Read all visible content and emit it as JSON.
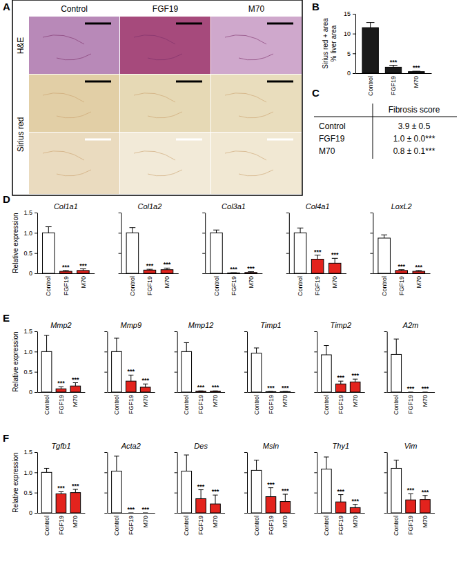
{
  "panel_labels": [
    "A",
    "B",
    "C",
    "D",
    "E",
    "F"
  ],
  "images": {
    "columns": [
      "Control",
      "FGF19",
      "M70"
    ],
    "rows": [
      "H&E",
      "Sirius red"
    ]
  },
  "table": {
    "column": "Fibrosis score",
    "rows": [
      [
        "Control",
        "3.9 ± 0.5"
      ],
      [
        "FGF19",
        "1.0 ± 0.0***"
      ],
      [
        "M70",
        "0.8 ± 0.1***"
      ]
    ]
  },
  "chart_data": [
    {
      "type": "bar",
      "ylabel": [
        "Sirius red + area",
        "% liver area"
      ],
      "categories": [
        "Control",
        "FGF19",
        "M70"
      ],
      "values": [
        11.5,
        1.5,
        0.4
      ],
      "errors": [
        1.3,
        0.5,
        0.1
      ],
      "annotations": [
        null,
        "***",
        "***"
      ],
      "colors": [
        "#1a1a1a",
        "#1a1a1a",
        "#1a1a1a"
      ],
      "ylim": [
        0,
        15
      ],
      "yticks": [
        0,
        5,
        10,
        15
      ]
    },
    {
      "type": "bar",
      "title": "Col1a1",
      "ylabel": [
        "Relative expression"
      ],
      "categories": [
        "Control",
        "FGF19",
        "M70"
      ],
      "values": [
        1.0,
        0.05,
        0.07
      ],
      "errors": [
        0.15,
        0.02,
        0.04
      ],
      "annotations": [
        null,
        "***",
        "***"
      ],
      "colors": [
        "#ffffff",
        "#e3231d",
        "#e3231d"
      ],
      "ylim": [
        0,
        1.5
      ],
      "yticks": [
        0,
        0.5,
        {
          "value": 1,
          "label": "1.0"
        },
        1.5
      ]
    },
    {
      "type": "bar",
      "title": "Col1a2",
      "tick_labels": "x",
      "categories": [
        "Control",
        "FGF19",
        "M70"
      ],
      "values": [
        1.0,
        0.08,
        0.09
      ],
      "errors": [
        0.13,
        0.02,
        0.04
      ],
      "annotations": [
        null,
        "***",
        "***"
      ],
      "colors": [
        "#ffffff",
        "#e3231d",
        "#e3231d"
      ],
      "ylim": [
        0,
        1.5
      ],
      "yticks": [
        0,
        0.5,
        {
          "value": 1,
          "label": "1.0"
        },
        1.5
      ]
    },
    {
      "type": "bar",
      "title": "Col3a1",
      "tick_labels": "x",
      "categories": [
        "Control",
        "FGF19",
        "M70"
      ],
      "values": [
        1.0,
        0.01,
        0.02
      ],
      "errors": [
        0.07,
        0.005,
        0.02
      ],
      "annotations": [
        null,
        "***",
        "***"
      ],
      "colors": [
        "#ffffff",
        "#e3231d",
        "#e3231d"
      ],
      "ylim": [
        0,
        1.5
      ],
      "yticks": [
        0,
        0.5,
        {
          "value": 1,
          "label": "1.0"
        },
        1.5
      ]
    },
    {
      "type": "bar",
      "title": "Col4a1",
      "tick_labels": "x",
      "categories": [
        "Control",
        "FGF19",
        "M70"
      ],
      "values": [
        1.0,
        0.35,
        0.25
      ],
      "errors": [
        0.12,
        0.1,
        0.12
      ],
      "annotations": [
        null,
        "***",
        "***"
      ],
      "colors": [
        "#ffffff",
        "#e3231d",
        "#e3231d"
      ],
      "ylim": [
        0,
        1.5
      ],
      "yticks": [
        0,
        0.5,
        {
          "value": 1,
          "label": "1.0"
        },
        1.5
      ]
    },
    {
      "type": "bar",
      "title": "LoxL2",
      "tick_labels": "x",
      "categories": [
        "Control",
        "FGF19",
        "M70"
      ],
      "values": [
        0.87,
        0.07,
        0.05
      ],
      "errors": [
        0.08,
        0.02,
        0.02
      ],
      "annotations": [
        null,
        "***",
        "***"
      ],
      "colors": [
        "#ffffff",
        "#e3231d",
        "#e3231d"
      ],
      "ylim": [
        0,
        1.5
      ],
      "yticks": [
        0,
        0.5,
        {
          "value": 1,
          "label": "1.0"
        },
        1.5
      ]
    },
    {
      "type": "bar",
      "title": "Mmp2",
      "ylabel": [
        "Relative expression"
      ],
      "categories": [
        "Control",
        "FGF19",
        "M70"
      ],
      "values": [
        1.0,
        0.08,
        0.15
      ],
      "errors": [
        0.4,
        0.05,
        0.08
      ],
      "annotations": [
        null,
        "***",
        "***"
      ],
      "colors": [
        "#ffffff",
        "#e3231d",
        "#e3231d"
      ],
      "ylim": [
        0,
        1.5
      ],
      "yticks": [
        0,
        0.5,
        {
          "value": 1,
          "label": "1.0"
        },
        1.5
      ]
    },
    {
      "type": "bar",
      "title": "Mmp9",
      "tick_labels": "x",
      "categories": [
        "Control",
        "FGF19",
        "M70"
      ],
      "values": [
        1.0,
        0.27,
        0.12
      ],
      "errors": [
        0.33,
        0.15,
        0.08
      ],
      "annotations": [
        null,
        "***",
        "***"
      ],
      "colors": [
        "#ffffff",
        "#e3231d",
        "#e3231d"
      ],
      "ylim": [
        0,
        1.5
      ],
      "yticks": [
        0,
        0.5,
        {
          "value": 1,
          "label": "1.0"
        },
        1.5
      ]
    },
    {
      "type": "bar",
      "title": "Mmp12",
      "tick_labels": "x",
      "categories": [
        "Control",
        "FGF19",
        "M70"
      ],
      "values": [
        1.0,
        0.02,
        0.02
      ],
      "errors": [
        0.22,
        0.01,
        0.01
      ],
      "annotations": [
        null,
        "***",
        "***"
      ],
      "colors": [
        "#ffffff",
        "#e3231d",
        "#e3231d"
      ],
      "ylim": [
        0,
        1.5
      ],
      "yticks": [
        0,
        0.5,
        {
          "value": 1,
          "label": "1.0"
        },
        1.5
      ]
    },
    {
      "type": "bar",
      "title": "Timp1",
      "tick_labels": "x",
      "categories": [
        "Control",
        "FGF19",
        "M70"
      ],
      "values": [
        0.96,
        0.01,
        0.01
      ],
      "errors": [
        0.13,
        0.005,
        0.005
      ],
      "annotations": [
        null,
        "***",
        "***"
      ],
      "colors": [
        "#ffffff",
        "#e3231d",
        "#e3231d"
      ],
      "ylim": [
        0,
        1.5
      ],
      "yticks": [
        0,
        0.5,
        {
          "value": 1,
          "label": "1.0"
        },
        1.5
      ]
    },
    {
      "type": "bar",
      "title": "Timp2",
      "tick_labels": "x",
      "categories": [
        "Control",
        "FGF19",
        "M70"
      ],
      "values": [
        0.92,
        0.2,
        0.25
      ],
      "errors": [
        0.23,
        0.07,
        0.07
      ],
      "annotations": [
        null,
        "***",
        "***"
      ],
      "colors": [
        "#ffffff",
        "#e3231d",
        "#e3231d"
      ],
      "ylim": [
        0,
        1.5
      ],
      "yticks": [
        0,
        0.5,
        {
          "value": 1,
          "label": "1.0"
        },
        1.5
      ]
    },
    {
      "type": "bar",
      "title": "A2m",
      "tick_labels": "x",
      "categories": [
        "Control",
        "FGF19",
        "M70"
      ],
      "values": [
        0.93,
        0.0,
        0.0
      ],
      "errors": [
        0.38,
        0.0,
        0.0
      ],
      "annotations": [
        null,
        "***",
        "***"
      ],
      "colors": [
        "#ffffff",
        "#e3231d",
        "#e3231d"
      ],
      "ylim": [
        0,
        1.5
      ],
      "yticks": [
        0,
        0.5,
        {
          "value": 1,
          "label": "1.0"
        },
        1.5
      ]
    },
    {
      "type": "bar",
      "title": "Tgfb1",
      "ylabel": [
        "Relative expression"
      ],
      "categories": [
        "Control",
        "FGF19",
        "M70"
      ],
      "values": [
        1.0,
        0.47,
        0.5
      ],
      "errors": [
        0.1,
        0.05,
        0.08
      ],
      "annotations": [
        null,
        "***",
        "***"
      ],
      "colors": [
        "#ffffff",
        "#e3231d",
        "#e3231d"
      ],
      "ylim": [
        0,
        1.5
      ],
      "yticks": [
        0,
        0.5,
        {
          "value": 1,
          "label": "1.0"
        },
        1.5
      ]
    },
    {
      "type": "bar",
      "title": "Acta2",
      "tick_labels": "x",
      "categories": [
        "Control",
        "FGF19",
        "M70"
      ],
      "values": [
        1.03,
        0.0,
        0.0
      ],
      "errors": [
        0.37,
        0.0,
        0.0
      ],
      "annotations": [
        null,
        "***",
        "***"
      ],
      "colors": [
        "#ffffff",
        "#e3231d",
        "#e3231d"
      ],
      "ylim": [
        0,
        1.5
      ],
      "yticks": [
        0,
        0.5,
        {
          "value": 1,
          "label": "1.0"
        },
        1.5
      ]
    },
    {
      "type": "bar",
      "title": "Des",
      "tick_labels": "x",
      "categories": [
        "Control",
        "FGF19",
        "M70"
      ],
      "values": [
        1.03,
        0.35,
        0.22
      ],
      "errors": [
        0.4,
        0.22,
        0.22
      ],
      "annotations": [
        null,
        "***",
        "***"
      ],
      "colors": [
        "#ffffff",
        "#e3231d",
        "#e3231d"
      ],
      "ylim": [
        0,
        1.5
      ],
      "yticks": [
        0,
        0.5,
        {
          "value": 1,
          "label": "1.0"
        },
        1.5
      ]
    },
    {
      "type": "bar",
      "title": "Msln",
      "tick_labels": "x",
      "categories": [
        "Control",
        "FGF19",
        "M70"
      ],
      "values": [
        1.05,
        0.4,
        0.28
      ],
      "errors": [
        0.25,
        0.22,
        0.18
      ],
      "annotations": [
        null,
        "***",
        "***"
      ],
      "colors": [
        "#ffffff",
        "#e3231d",
        "#e3231d"
      ],
      "ylim": [
        0,
        1.5
      ],
      "yticks": [
        0,
        0.5,
        {
          "value": 1,
          "label": "1.0"
        },
        1.5
      ]
    },
    {
      "type": "bar",
      "title": "Thy1",
      "tick_labels": "x",
      "categories": [
        "Control",
        "FGF19",
        "M70"
      ],
      "values": [
        1.08,
        0.27,
        0.13
      ],
      "errors": [
        0.3,
        0.18,
        0.08
      ],
      "annotations": [
        null,
        "***",
        "***"
      ],
      "colors": [
        "#ffffff",
        "#e3231d",
        "#e3231d"
      ],
      "ylim": [
        0,
        1.5
      ],
      "yticks": [
        0,
        0.5,
        {
          "value": 1,
          "label": "1.0"
        },
        1.5
      ]
    },
    {
      "type": "bar",
      "title": "Vim",
      "tick_labels": "x",
      "categories": [
        "Control",
        "FGF19",
        "M70"
      ],
      "values": [
        1.1,
        0.32,
        0.33
      ],
      "errors": [
        0.2,
        0.15,
        0.1
      ],
      "annotations": [
        null,
        "***",
        "***"
      ],
      "colors": [
        "#ffffff",
        "#e3231d",
        "#e3231d"
      ],
      "ylim": [
        0,
        1.5
      ],
      "yticks": [
        0,
        0.5,
        {
          "value": 1,
          "label": "1.0"
        },
        1.5
      ]
    }
  ]
}
